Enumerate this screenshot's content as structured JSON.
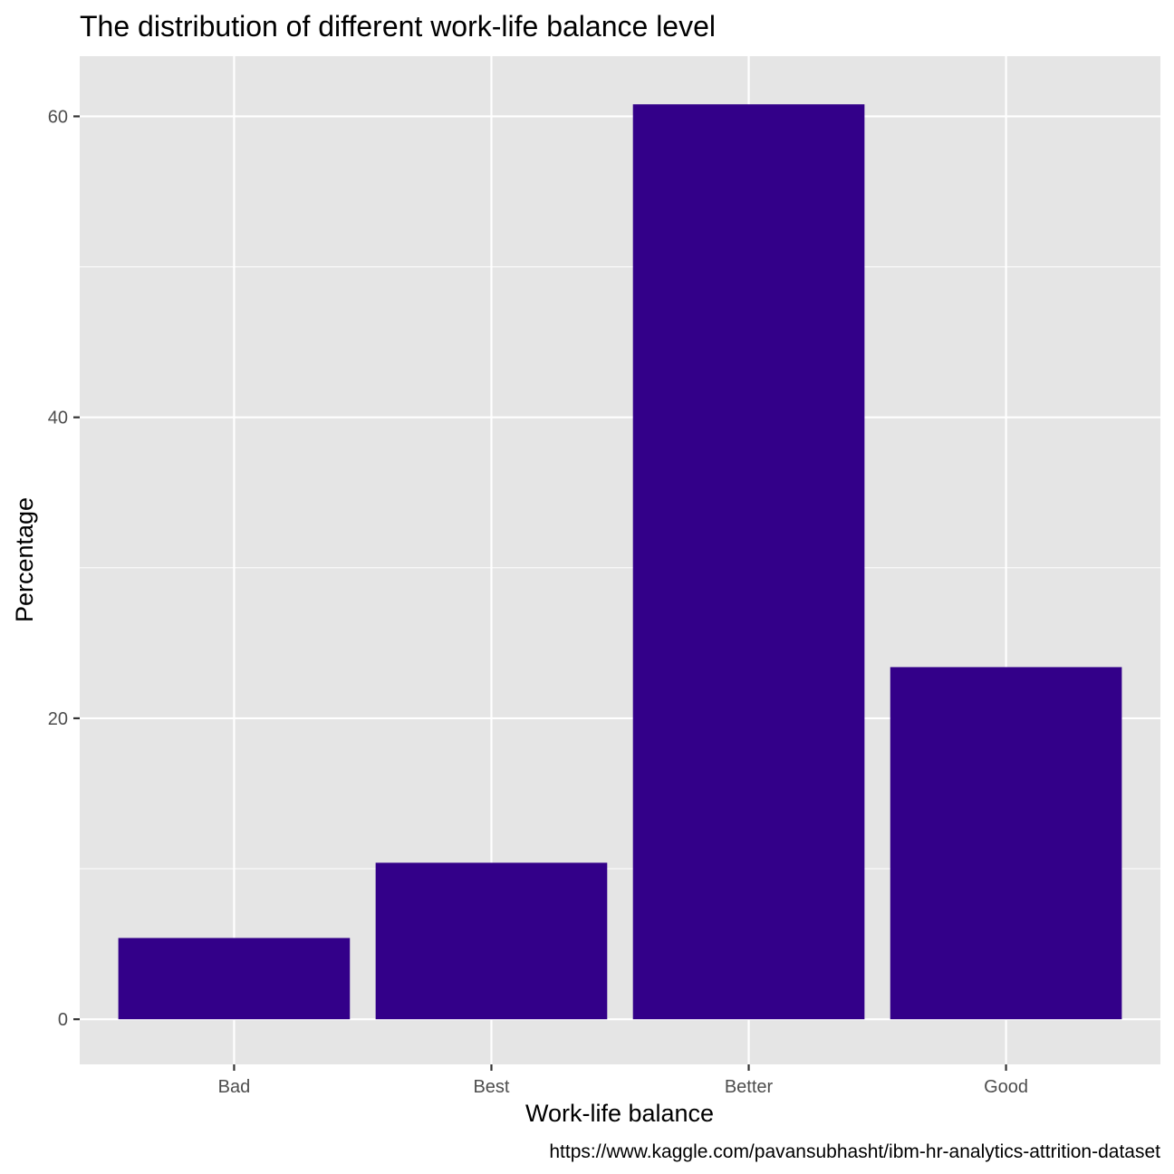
{
  "colors": {
    "panel_bg": "#E5E5E5",
    "grid_major": "#FFFFFF",
    "bar_fill": "#330089",
    "axis_text": "#4D4D4D",
    "title_text": "#000000"
  },
  "chart_data": {
    "type": "bar",
    "title": "The distribution of different work-life balance level",
    "xlabel": "Work-life balance",
    "ylabel": "Percentage",
    "caption": "https://www.kaggle.com/pavansubhasht/ibm-hr-analytics-attrition-dataset",
    "categories": [
      "Bad",
      "Best",
      "Better",
      "Good"
    ],
    "values": [
      5.4,
      10.4,
      60.8,
      23.4
    ],
    "ylim": [
      -3,
      64
    ],
    "yticks": [
      0,
      20,
      40,
      60
    ],
    "grid": true,
    "legend": "none"
  }
}
